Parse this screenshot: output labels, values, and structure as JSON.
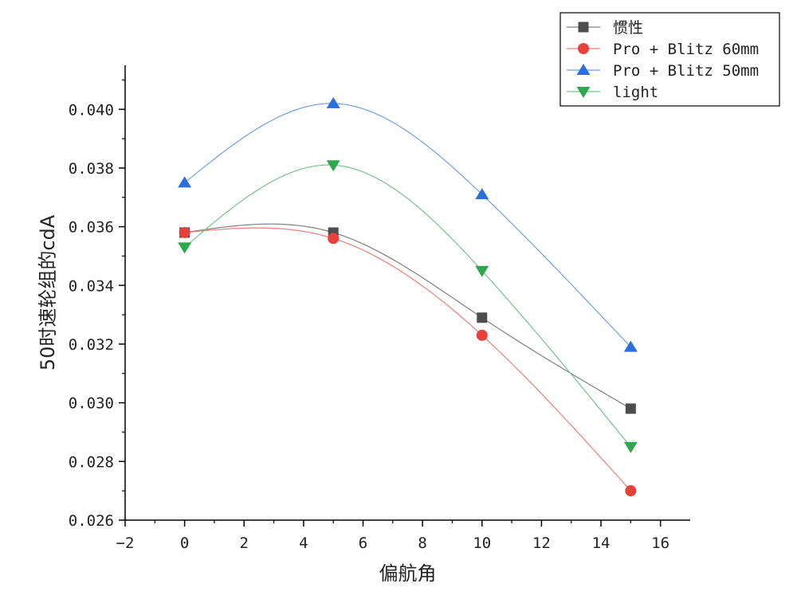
{
  "chart_data": {
    "type": "line",
    "title": "",
    "xlabel": "偏航角",
    "ylabel": "50时速轮组的cdA",
    "xlim": [
      -2,
      17
    ],
    "ylim": [
      0.026,
      0.0415
    ],
    "x_ticks": [
      -2,
      0,
      2,
      4,
      6,
      8,
      10,
      12,
      14,
      16
    ],
    "x_tick_labels": [
      "−2",
      "0",
      "2",
      "4",
      "6",
      "8",
      "10",
      "12",
      "14",
      "16"
    ],
    "y_ticks": [
      0.026,
      0.028,
      0.03,
      0.032,
      0.034,
      0.036,
      0.038,
      0.04
    ],
    "y_tick_labels": [
      "0.026",
      "0.028",
      "0.030",
      "0.032",
      "0.034",
      "0.036",
      "0.038",
      "0.040"
    ],
    "grid": false,
    "legend_position": "top-right",
    "x": [
      0,
      5,
      10,
      15
    ],
    "series": [
      {
        "name": "惯性",
        "values": [
          0.0358,
          0.0358,
          0.0329,
          0.0298
        ],
        "color": "#4d4d4d",
        "line_color": "#7f7f7f",
        "marker": "square"
      },
      {
        "name": "Pro + Blitz 60mm",
        "values": [
          0.0358,
          0.0356,
          0.0323,
          0.027
        ],
        "color": "#e8413c",
        "line_color": "#ef7e7a",
        "marker": "circle"
      },
      {
        "name": "Pro + Blitz 50mm",
        "values": [
          0.0375,
          0.0402,
          0.0371,
          0.0319
        ],
        "color": "#2a6fdb",
        "line_color": "#6f9fe6",
        "marker": "triangle-up"
      },
      {
        "name": "light",
        "values": [
          0.0353,
          0.0381,
          0.0345,
          0.0285
        ],
        "color": "#2ea84a",
        "line_color": "#76c38a",
        "marker": "triangle-down"
      }
    ]
  }
}
